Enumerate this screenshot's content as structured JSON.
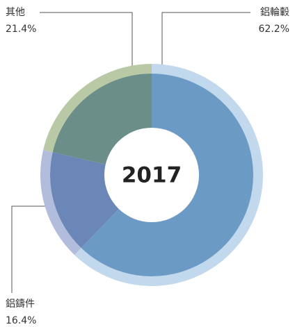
{
  "chart_data": {
    "type": "donut",
    "center_label": "2017",
    "categories": [
      "鋁輪轂",
      "鋁鑄件",
      "其他"
    ],
    "values": [
      62.2,
      16.4,
      21.4
    ],
    "value_labels": [
      "62.2%",
      "16.4%",
      "21.4%"
    ],
    "colors": [
      "#6b9bc5",
      "#6a87b7",
      "#6b8f88"
    ],
    "ring_colors": [
      "#c2d8ed",
      "#b2bddd",
      "#b9c9a5"
    ]
  }
}
